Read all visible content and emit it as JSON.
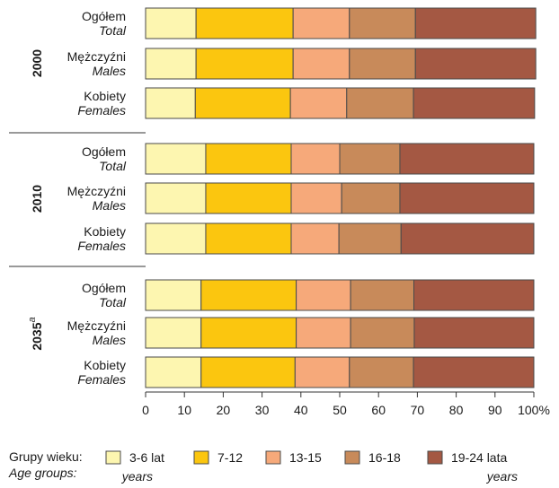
{
  "chart_data": {
    "type": "bar",
    "stacked": true,
    "orientation": "horizontal",
    "x_ticks": [
      "0",
      "10",
      "20",
      "30",
      "40",
      "50",
      "60",
      "70",
      "80",
      "90",
      "100%"
    ],
    "xlim": [
      0,
      100
    ],
    "groups": [
      {
        "year": "2000",
        "superscript": "",
        "rows": [
          {
            "label_pl": "Ogółem",
            "label_en": "Total",
            "values": [
              13,
              25,
              14.5,
              17,
              31
            ]
          },
          {
            "label_pl": "Mężczyźni",
            "label_en": "Males",
            "values": [
              13,
              25,
              14.5,
              17,
              31
            ]
          },
          {
            "label_pl": "Kobiety",
            "label_en": "Females",
            "values": [
              12.8,
              24.5,
              14.5,
              17.2,
              31.2
            ]
          }
        ]
      },
      {
        "year": "2010",
        "superscript": "",
        "rows": [
          {
            "label_pl": "Ogółem",
            "label_en": "Total",
            "values": [
              15.5,
              22,
              12.5,
              15.5,
              34.5
            ]
          },
          {
            "label_pl": "Mężczyźni",
            "label_en": "Males",
            "values": [
              15.5,
              22,
              13,
              15,
              34.5
            ]
          },
          {
            "label_pl": "Kobiety",
            "label_en": "Females",
            "values": [
              15.5,
              22,
              12.3,
              16,
              34.2
            ]
          }
        ]
      },
      {
        "year": "2035",
        "superscript": "a",
        "rows": [
          {
            "label_pl": "Ogółem",
            "label_en": "Total",
            "values": [
              14.3,
              24.5,
              14,
              16.3,
              30.9
            ]
          },
          {
            "label_pl": "Mężczyźni",
            "label_en": "Males",
            "values": [
              14.3,
              24.5,
              14,
              16.4,
              30.8
            ]
          },
          {
            "label_pl": "Kobiety",
            "label_en": "Females",
            "values": [
              14.3,
              24.2,
              14,
              16.5,
              31
            ]
          }
        ]
      }
    ],
    "series": [
      {
        "name": "3-6 lat",
        "name_en": "years",
        "color": "#fdf6b0"
      },
      {
        "name": "7-12",
        "name_en": "",
        "color": "#fbc60f"
      },
      {
        "name": "13-15",
        "name_en": "",
        "color": "#f6a97a"
      },
      {
        "name": "16-18",
        "name_en": "",
        "color": "#c88a5a"
      },
      {
        "name": "19-24 lata",
        "name_en": "years",
        "color": "#a45843"
      }
    ],
    "legend": {
      "title_pl": "Grupy wieku:",
      "title_en": "Age groups:",
      "placement": "bottom"
    }
  }
}
